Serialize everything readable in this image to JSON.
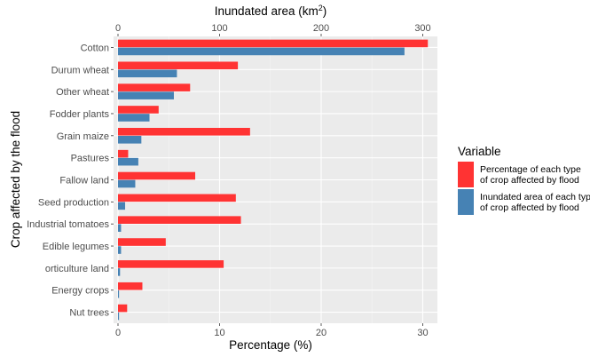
{
  "chart_data": {
    "type": "bar",
    "orientation": "horizontal",
    "categories": [
      "Cotton",
      "Durum wheat",
      "Other wheat",
      "Fodder plants",
      "Grain maize",
      "Pastures",
      "Fallow land",
      "Seed production",
      "Industrial tomatoes",
      "Edible legumes",
      "orticulture land",
      "Energy crops",
      "Nut trees"
    ],
    "series": [
      {
        "name": "Percentage of each type of crop affected by flood",
        "axis": "bottom",
        "color": "#ff3333",
        "values": [
          30.5,
          11.8,
          7.1,
          4.0,
          13.0,
          1.0,
          7.6,
          11.6,
          12.1,
          4.7,
          10.4,
          2.4,
          0.9
        ]
      },
      {
        "name": "Inundated area of each type of crop affected by flood",
        "axis": "top",
        "color": "#4682b4",
        "values": [
          282,
          58,
          55,
          31,
          23,
          20,
          17,
          7,
          3,
          3,
          2,
          1,
          1
        ]
      }
    ],
    "xlabel_bottom": "Percentage (%)",
    "xlabel_top_prefix": "Inundated area (km",
    "xlabel_top_sup": "2",
    "xlabel_top_suffix": ")",
    "ylabel": "Crop affected by the flood",
    "xlim_bottom": [
      0,
      30.5
    ],
    "xticks_bottom": [
      0,
      10,
      20,
      30
    ],
    "xlim_top": [
      0,
      305
    ],
    "xticks_top": [
      0,
      100,
      200,
      300
    ],
    "grid": true,
    "legend": {
      "title": "Variable",
      "position": "right",
      "entries": [
        {
          "line1": "Percentage of each type",
          "line2": "of crop affected by flood",
          "color": "#ff3333"
        },
        {
          "line1": "Inundated area of each type",
          "line2": "of crop affected by flood",
          "color": "#4682b4"
        }
      ]
    }
  }
}
